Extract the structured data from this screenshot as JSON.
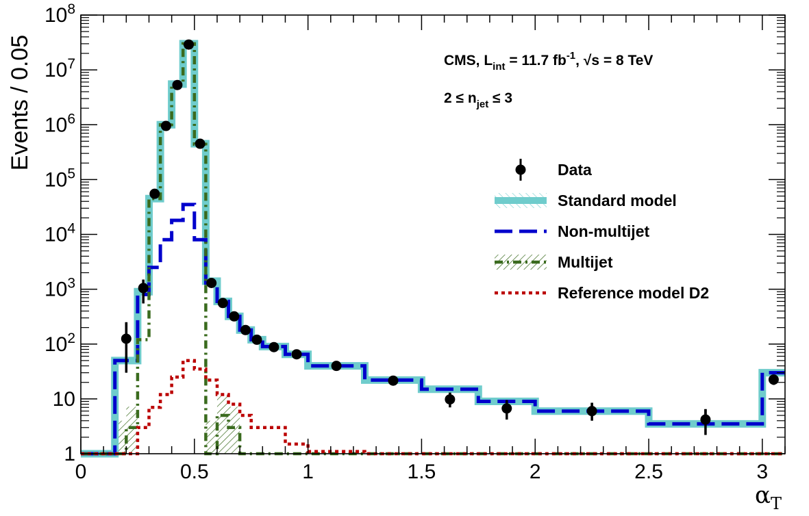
{
  "chart_data": {
    "type": "line",
    "ylabel": "Events / 0.05",
    "xlabel": "α",
    "xlabel_sub": "T",
    "xlim": [
      0,
      3.1
    ],
    "ylim": [
      1,
      100000000
    ],
    "yscale": "log",
    "annotation": {
      "line1_prefix": "CMS, L",
      "line1_sub": "int",
      "line1_mid": " = 11.7 fb",
      "line1_sup": "-1",
      "line1_suffix": ", √s = 8 TeV",
      "line2_prefix": "2 ≤ n",
      "line2_sub": "jet",
      "line2_suffix": " ≤ 3"
    },
    "x_ticks": [
      {
        "value": 0,
        "label": "0"
      },
      {
        "value": 0.5,
        "label": "0.5"
      },
      {
        "value": 1,
        "label": "1"
      },
      {
        "value": 1.5,
        "label": "1.5"
      },
      {
        "value": 2,
        "label": "2"
      },
      {
        "value": 2.5,
        "label": "2.5"
      },
      {
        "value": 3,
        "label": "3"
      }
    ],
    "y_ticks": [
      {
        "value": 1,
        "base": "1",
        "exp": ""
      },
      {
        "value": 10,
        "base": "10",
        "exp": ""
      },
      {
        "value": 100,
        "base": "10",
        "exp": "2"
      },
      {
        "value": 1000,
        "base": "10",
        "exp": "3"
      },
      {
        "value": 10000,
        "base": "10",
        "exp": "4"
      },
      {
        "value": 100000,
        "base": "10",
        "exp": "5"
      },
      {
        "value": 1000000,
        "base": "10",
        "exp": "6"
      },
      {
        "value": 10000000,
        "base": "10",
        "exp": "7"
      },
      {
        "value": 100000000,
        "base": "10",
        "exp": "8"
      }
    ],
    "edges": [
      0,
      0.15,
      0.2,
      0.25,
      0.275,
      0.3,
      0.35,
      0.4,
      0.45,
      0.5,
      0.55,
      0.6,
      0.65,
      0.7,
      0.75,
      0.8,
      0.9,
      1.0,
      1.25,
      1.5,
      1.75,
      2.0,
      2.5,
      3.0,
      3.1
    ],
    "series": [
      {
        "name": "Standard model",
        "color": "#6fcccc",
        "style": "band",
        "values": [
          1,
          50,
          50,
          900,
          900,
          45000,
          1000000,
          5500000,
          30000000,
          450000,
          1400,
          600,
          320,
          180,
          120,
          90,
          65,
          40,
          22,
          15,
          9,
          6,
          3.5,
          30
        ]
      },
      {
        "name": "Non-multijet",
        "color": "#0000cc",
        "style": "dashed",
        "values": [
          1,
          50,
          50,
          800,
          800,
          2500,
          8000,
          18000,
          35000,
          8000,
          1300,
          600,
          320,
          180,
          120,
          90,
          65,
          40,
          22,
          15,
          9,
          6,
          3.5,
          30
        ]
      },
      {
        "name": "Multijet",
        "color": "#3a6b1e",
        "style": "dashdot",
        "values": [
          1,
          1,
          3,
          120,
          120,
          45000,
          1000000,
          5500000,
          30000000,
          440000,
          1,
          5,
          3,
          1,
          1,
          1,
          1,
          1,
          1,
          1,
          1,
          1,
          1,
          1
        ]
      },
      {
        "name": "Reference model D2",
        "color": "#bb0000",
        "style": "dotted",
        "values": [
          1,
          1,
          1,
          3,
          3,
          7,
          12,
          25,
          50,
          35,
          22,
          12,
          8,
          5,
          3,
          3,
          1.5,
          1.1,
          1,
          1,
          1,
          1,
          1,
          1
        ]
      }
    ],
    "data_points": {
      "name": "Data",
      "points": [
        {
          "x": 0.2,
          "y": 125,
          "lo": 30,
          "hi": 250
        },
        {
          "x": 0.275,
          "y": 1050,
          "lo": 550,
          "hi": 1500
        },
        {
          "x": 0.325,
          "y": 55000,
          "lo": 50000,
          "hi": 60000
        },
        {
          "x": 0.375,
          "y": 950000,
          "lo": 900000,
          "hi": 1000000
        },
        {
          "x": 0.425,
          "y": 5300000,
          "lo": 5200000,
          "hi": 5400000
        },
        {
          "x": 0.475,
          "y": 29000000,
          "lo": 28500000,
          "hi": 29500000
        },
        {
          "x": 0.525,
          "y": 450000,
          "lo": 440000,
          "hi": 460000
        },
        {
          "x": 0.575,
          "y": 1300,
          "lo": 1200,
          "hi": 1400
        },
        {
          "x": 0.625,
          "y": 560,
          "lo": 520,
          "hi": 600
        },
        {
          "x": 0.675,
          "y": 320,
          "lo": 295,
          "hi": 345
        },
        {
          "x": 0.725,
          "y": 180,
          "lo": 165,
          "hi": 195
        },
        {
          "x": 0.775,
          "y": 120,
          "lo": 110,
          "hi": 130
        },
        {
          "x": 0.85,
          "y": 88,
          "lo": 80,
          "hi": 96
        },
        {
          "x": 0.95,
          "y": 65,
          "lo": 58,
          "hi": 72
        },
        {
          "x": 1.125,
          "y": 40,
          "lo": 35,
          "hi": 45
        },
        {
          "x": 1.375,
          "y": 21.5,
          "lo": 18,
          "hi": 25
        },
        {
          "x": 1.625,
          "y": 9.8,
          "lo": 7,
          "hi": 13
        },
        {
          "x": 1.875,
          "y": 6.7,
          "lo": 4.2,
          "hi": 9.5
        },
        {
          "x": 2.25,
          "y": 6,
          "lo": 4,
          "hi": 8.5
        },
        {
          "x": 2.75,
          "y": 4.2,
          "lo": 2.2,
          "hi": 6.5
        },
        {
          "x": 3.05,
          "y": 22.5,
          "lo": 18,
          "hi": 27
        }
      ]
    },
    "legend": {
      "placement": "right",
      "entries": [
        {
          "label": "Data",
          "kind": "marker"
        },
        {
          "label": "Standard model",
          "kind": "band"
        },
        {
          "label": "Non-multijet",
          "kind": "dashed"
        },
        {
          "label": "Multijet",
          "kind": "dashdot"
        },
        {
          "label": "Reference model D2",
          "kind": "dotted"
        }
      ]
    }
  }
}
